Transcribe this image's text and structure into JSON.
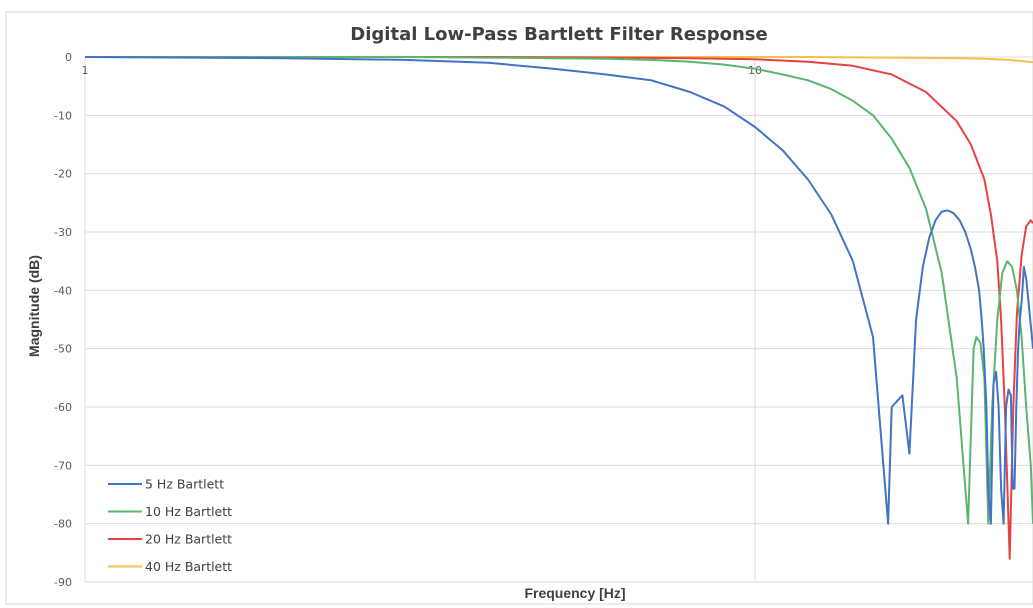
{
  "chart_data": {
    "type": "line",
    "title": "Digital Low-Pass Bartlett Filter Response",
    "xlabel": "Frequency [Hz]",
    "ylabel": "Magnitude (dB)",
    "x_scale": "log",
    "xlim": [
      1,
      26
    ],
    "ylim": [
      -90,
      0
    ],
    "x_ticks": [
      1,
      10
    ],
    "x_tick_labels": [
      "1",
      "10"
    ],
    "y_ticks": [
      0,
      -10,
      -20,
      -30,
      -40,
      -50,
      -60,
      -70,
      -80,
      -90
    ],
    "y_tick_labels": [
      "0",
      "-10",
      "-20",
      "-30",
      "-40",
      "-50",
      "-60",
      "-70",
      "-80",
      "-90"
    ],
    "grid": true,
    "legend_position": "bottom-left",
    "series": [
      {
        "name": "5 Hz Bartlett",
        "color": "#4472C4",
        "x": [
          1,
          2,
          3,
          4,
          5,
          6,
          7,
          8,
          9,
          10,
          11,
          12,
          13,
          14,
          15,
          15.8,
          16,
          16.6,
          17,
          17.4,
          17.8,
          18.2,
          18.6,
          19,
          19.4,
          19.8,
          20.2,
          20.6,
          21,
          21.3,
          21.6,
          21.8,
          21.95,
          22.15,
          22.3,
          22.5,
          22.7,
          22.9,
          23.1,
          23.3,
          23.5,
          23.7,
          23.9,
          24.1,
          24.25,
          24.4,
          24.55,
          24.7,
          24.85,
          25,
          25.2,
          25.4,
          25.6,
          25.8,
          26
        ],
        "y": [
          0,
          -0.2,
          -0.5,
          -1,
          -2,
          -3,
          -4,
          -6,
          -8.5,
          -12,
          -16,
          -21,
          -27,
          -35,
          -48,
          -80,
          -60,
          -58,
          -68,
          -45,
          -36,
          -31,
          -28,
          -26.5,
          -26.3,
          -26.8,
          -28,
          -30,
          -33,
          -36,
          -40,
          -45,
          -50,
          -60,
          -74,
          -80,
          -56,
          -54,
          -60,
          -74,
          -80,
          -60,
          -57,
          -58,
          -74,
          -74,
          -60,
          -50,
          -45,
          -42,
          -36,
          -38,
          -42,
          -46,
          -50
        ]
      },
      {
        "name": "10 Hz Bartlett",
        "color": "#5AB56F",
        "x": [
          1,
          2,
          3,
          4,
          5,
          6,
          7,
          8,
          9,
          10,
          11,
          12,
          13,
          14,
          15,
          16,
          17,
          18,
          19,
          20,
          20.8,
          21.2,
          21.4,
          21.7,
          22.0,
          22.3,
          22.6,
          23.0,
          23.4,
          23.8,
          24.2,
          24.6,
          25.0,
          25.4,
          25.8,
          26
        ],
        "y": [
          0,
          0,
          0,
          -0.1,
          -0.2,
          -0.3,
          -0.5,
          -0.8,
          -1.3,
          -2,
          -3,
          -4,
          -5.5,
          -7.5,
          -10,
          -14,
          -19,
          -26,
          -37,
          -55,
          -80,
          -50,
          -48,
          -49,
          -55,
          -80,
          -60,
          -45,
          -37,
          -35,
          -36,
          -40,
          -48,
          -60,
          -70,
          -80
        ]
      },
      {
        "name": "20 Hz Bartlett",
        "color": "#E84141",
        "x": [
          1,
          2,
          4,
          6,
          8,
          10,
          12,
          14,
          16,
          18,
          20,
          21,
          22,
          22.5,
          23,
          23.3,
          23.6,
          24,
          24.3,
          24.6,
          25,
          25.4,
          25.8,
          26
        ],
        "y": [
          0,
          0,
          0,
          -0.1,
          -0.2,
          -0.4,
          -0.8,
          -1.5,
          -3,
          -6,
          -11,
          -15,
          -21,
          -27,
          -35,
          -45,
          -60,
          -86,
          -60,
          -44,
          -34,
          -29,
          -28,
          -28.5
        ]
      },
      {
        "name": "40 Hz Bartlett",
        "color": "#F2C14E",
        "x": [
          1,
          4,
          8,
          12,
          16,
          20,
          22,
          24,
          26
        ],
        "y": [
          0,
          0,
          0,
          0,
          -0.1,
          -0.2,
          -0.3,
          -0.5,
          -0.9
        ]
      }
    ]
  }
}
